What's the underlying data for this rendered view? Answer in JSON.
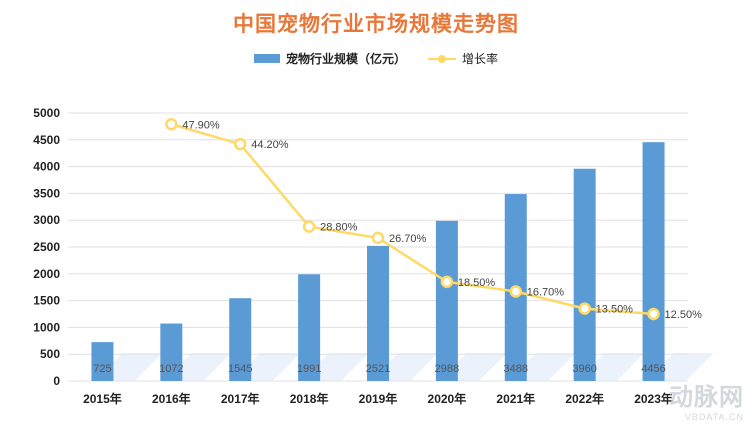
{
  "header": {
    "title": "中国宠物行业市场规模走势图"
  },
  "legend": {
    "bar_label": "宠物行业规模（亿元）",
    "line_label": "增长率"
  },
  "colors": {
    "bar": "#5b9bd5",
    "line": "#ffd966",
    "title": "#e8783a",
    "grid": "#e0e0e0"
  },
  "watermark": {
    "main": "动脉网",
    "sub": "VBDATA.CN"
  },
  "chart_data": {
    "type": "bar",
    "title": "中国宠物行业市场规模走势图",
    "xlabel": "",
    "ylabel": "",
    "ylim": [
      0,
      5000
    ],
    "yticks": [
      "0",
      "500",
      "1000",
      "1500",
      "2000",
      "2500",
      "3000",
      "3500",
      "4000",
      "4500",
      "5000"
    ],
    "grid": true,
    "legend_position": "top",
    "categories": [
      "2015年",
      "2016年",
      "2017年",
      "2018年",
      "2019年",
      "2020年",
      "2021年",
      "2022年",
      "2023年"
    ],
    "series": [
      {
        "name": "宠物行业规模（亿元）",
        "type": "bar",
        "values": [
          725,
          1072,
          1545,
          1991,
          2521,
          2988,
          3488,
          3960,
          4456
        ],
        "labels": [
          "725",
          "1072",
          "1545",
          "1991",
          "2521",
          "2988",
          "3488",
          "3960",
          "4456"
        ]
      },
      {
        "name": "增长率",
        "type": "line",
        "values": [
          null,
          47.9,
          44.2,
          28.8,
          26.7,
          18.5,
          16.7,
          13.5,
          12.5
        ],
        "labels": [
          "",
          "47.90%",
          "44.20%",
          "28.80%",
          "26.70%",
          "18.50%",
          "16.70%",
          "13.50%",
          "12.50%"
        ]
      }
    ]
  }
}
